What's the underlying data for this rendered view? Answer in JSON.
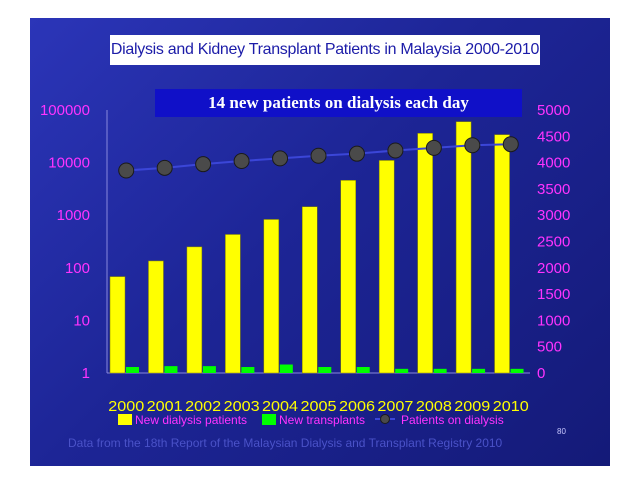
{
  "slide": {
    "footnote": "Data from the 18th Report of the Malaysian Dialysis and Transplant Registry 2010",
    "slide_number": "80"
  },
  "chart_data": {
    "type": "bar",
    "title": "Dialysis and Kidney Transplant Patients in Malaysia 2000-2010",
    "annotation": "14 new patients on dialysis each day",
    "categories": [
      "2000",
      "2001",
      "2002",
      "2003",
      "2004",
      "2005",
      "2006",
      "2007",
      "2008",
      "2009",
      "2010"
    ],
    "y_left": {
      "scale": "log",
      "ticks": [
        "1",
        "10",
        "100",
        "1000",
        "10000",
        "100000"
      ],
      "ylim": [
        1,
        100000
      ]
    },
    "y_right": {
      "scale": "linear",
      "ticks": [
        "0",
        "500",
        "1000",
        "1500",
        "2000",
        "2500",
        "3000",
        "3500",
        "4000",
        "4500",
        "5000"
      ],
      "ylim": [
        0,
        5000
      ]
    },
    "series": [
      {
        "name": "New dialysis patients",
        "type": "bar",
        "axis": "left",
        "color": "#ffff00",
        "values": [
          68,
          135,
          250,
          430,
          830,
          1450,
          4600,
          11000,
          36000,
          60000,
          34000
        ]
      },
      {
        "name": "New transplants",
        "type": "bar",
        "axis": "left",
        "color": "#00ff00",
        "values": [
          1.3,
          1.35,
          1.35,
          1.3,
          1.45,
          1.3,
          1.3,
          1.2,
          1.2,
          1.2,
          1.2
        ]
      },
      {
        "name": "Patients on dialysis",
        "type": "line",
        "axis": "right",
        "color": "#3b46d8",
        "marker_color": "#4a4a4a",
        "values": [
          3850,
          3900,
          3970,
          4030,
          4080,
          4130,
          4170,
          4230,
          4280,
          4330,
          4350
        ]
      }
    ],
    "grid": false,
    "legend_position": "bottom"
  }
}
